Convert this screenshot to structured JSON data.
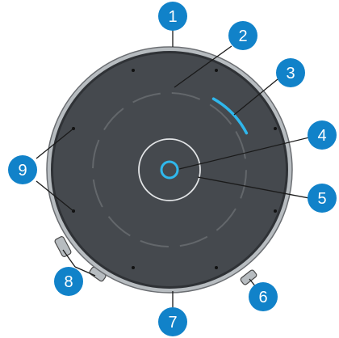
{
  "device": {
    "body_color": "#45494e",
    "rim_color": "#b7bcc0",
    "ring_color": "#63676b",
    "center_ring_color": "#e3e5e7",
    "light_ring_color": "#2fb7ec",
    "badge_color": "#1182c9",
    "leader_color": "#1a1a1a"
  },
  "callouts": [
    {
      "label": "1",
      "part": "top-edge"
    },
    {
      "label": "2",
      "part": "dial-ring"
    },
    {
      "label": "3",
      "part": "light-ring-arc"
    },
    {
      "label": "4",
      "part": "center-button"
    },
    {
      "label": "5",
      "part": "center-ring"
    },
    {
      "label": "6",
      "part": "side-port-right"
    },
    {
      "label": "7",
      "part": "bottom-edge"
    },
    {
      "label": "8",
      "part": "side-buttons-left"
    },
    {
      "label": "9",
      "part": "microphone-holes-left"
    }
  ]
}
